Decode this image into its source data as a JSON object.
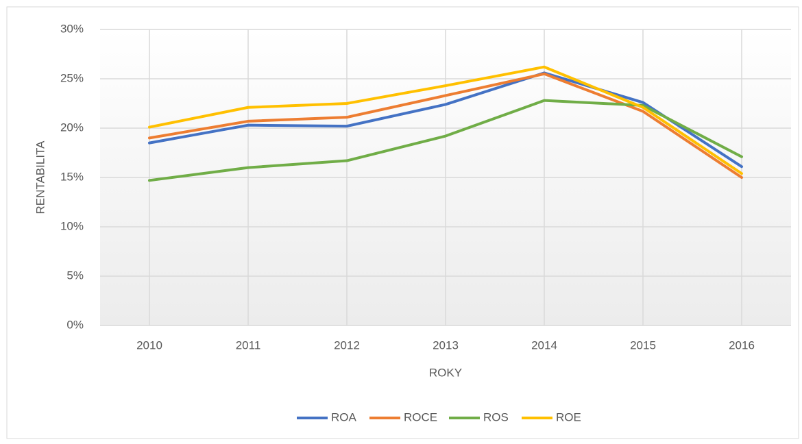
{
  "chart_data": {
    "type": "line",
    "x_label": "ROKY",
    "y_label": "RENTABILITA",
    "categories": [
      "2010",
      "2011",
      "2012",
      "2013",
      "2014",
      "2015",
      "2016"
    ],
    "series": [
      {
        "name": "ROA",
        "color": "#4472c4",
        "values": [
          18.5,
          20.3,
          20.2,
          22.4,
          25.6,
          22.6,
          16.1
        ]
      },
      {
        "name": "ROCE",
        "color": "#ed7d31",
        "values": [
          19.0,
          20.7,
          21.1,
          23.3,
          25.5,
          21.7,
          15.0
        ]
      },
      {
        "name": "ROS",
        "color": "#70ad47",
        "values": [
          14.7,
          16.0,
          16.7,
          19.2,
          22.8,
          22.3,
          17.1
        ]
      },
      {
        "name": "ROE",
        "color": "#ffc000",
        "values": [
          20.1,
          22.1,
          22.5,
          24.3,
          26.2,
          22.1,
          15.4
        ]
      }
    ],
    "ylim": [
      0,
      30
    ],
    "yticks": [
      {
        "value": 0,
        "label": "0%"
      },
      {
        "value": 5,
        "label": "5%"
      },
      {
        "value": 10,
        "label": "10%"
      },
      {
        "value": 15,
        "label": "15%"
      },
      {
        "value": 20,
        "label": "20%"
      },
      {
        "value": 25,
        "label": "25%"
      },
      {
        "value": 30,
        "label": "30%"
      }
    ],
    "grid": true,
    "legend": "bottom"
  }
}
